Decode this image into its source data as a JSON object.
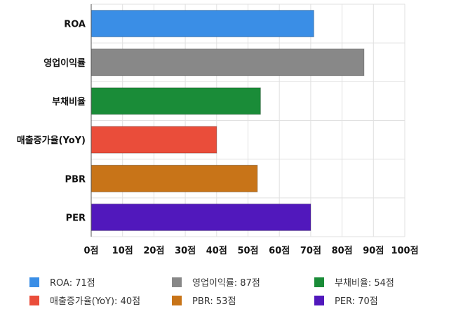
{
  "chart_data": {
    "type": "bar",
    "orientation": "horizontal",
    "title": "",
    "xlabel": "",
    "ylabel": "",
    "categories": [
      "ROA",
      "영업이익률",
      "부채비율",
      "매출증가율(YoY)",
      "PBR",
      "PER"
    ],
    "values": [
      71,
      87,
      54,
      40,
      53,
      70
    ],
    "colors": [
      "#3a8ee6",
      "#888888",
      "#1a8c38",
      "#ea4d3a",
      "#c87418",
      "#5118bc"
    ],
    "xlim": [
      0,
      100
    ],
    "x_ticks": [
      "0점",
      "10점",
      "20점",
      "30점",
      "40점",
      "50점",
      "60점",
      "70점",
      "80점",
      "90점",
      "100점"
    ],
    "grid": true,
    "legend_position": "bottom",
    "legend": [
      "ROA: 71점",
      "영업이익률: 87점",
      "부채비율: 54점",
      "매출증가율(YoY): 40점",
      "PBR: 53점",
      "PER: 70점"
    ]
  }
}
